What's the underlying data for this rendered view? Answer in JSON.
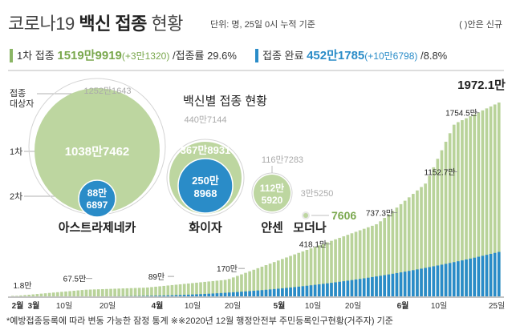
{
  "header": {
    "title_prefix": "코로나19",
    "title_bold": "백신 접종",
    "title_suffix": "현황",
    "unit_note": "단위: 명, 25일 0시 누적 기준",
    "new_note": "( )안은 신규"
  },
  "summary": {
    "first_label": "1차 접종",
    "first_value": "1519만9919",
    "first_new": "(+3만1320)",
    "first_rate_label": "/접종률",
    "first_rate": "29.6%",
    "complete_label": "접종 완료",
    "complete_value": "452만1785",
    "complete_new": "(+10만6798)",
    "complete_rate": "/8.8%"
  },
  "bubbles": {
    "section_title": "백신별 접종 현황",
    "legend_target": "접종 대상자",
    "legend_target_line1": "접종",
    "legend_target_line2": "대상자",
    "legend_first": "1차",
    "legend_second": "2차",
    "vaccines": [
      {
        "name": "아스트라제네카",
        "target": "1252만1643",
        "first": "1038만7462",
        "second_line1": "88만",
        "second_line2": "6897"
      },
      {
        "name": "화이자",
        "target": "440만7144",
        "first": "367만8931",
        "second_line1": "250만",
        "second_line2": "8968"
      },
      {
        "name": "얀센",
        "target": "116만7283",
        "first_line1": "112만",
        "first_line2": "5920",
        "second": ""
      },
      {
        "name": "모더나",
        "target": "3만5250",
        "first": "7606"
      }
    ]
  },
  "chart_data": {
    "type": "bar",
    "title": "",
    "series": [
      {
        "name": "1차",
        "color": "#b9d39a"
      },
      {
        "name": "2차",
        "color": "#2a8cc8"
      }
    ],
    "annotations": [
      {
        "date": "2월 26일",
        "label": "1.8만",
        "value": 1.8
      },
      {
        "date": "3월 16일",
        "label": "67.5만",
        "value": 67.5
      },
      {
        "date": "3월 31일",
        "label": "89만",
        "value": 89
      },
      {
        "date": "4월 20일",
        "label": "170만",
        "value": 170
      },
      {
        "date": "5월 6일",
        "label": "418.1만",
        "value": 418.1
      },
      {
        "date": "5월 27일",
        "label": "737.3만",
        "value": 737.3
      },
      {
        "date": "6월 8일",
        "label": "1152.7만",
        "value": 1152.7
      },
      {
        "date": "6월 15일",
        "label": "1754.5만",
        "value": 1754.5
      },
      {
        "date": "6월 25일",
        "label": "1972.1만",
        "value": 1972.1
      }
    ],
    "x_ticks": [
      "2월",
      "3월",
      "10일",
      "20일",
      "4월",
      "10일",
      "20일",
      "5월",
      "10일",
      "20일",
      "6월",
      "10일",
      "25일"
    ],
    "ylabel": "",
    "xlabel": ""
  },
  "footnote": "*예방접종등록에 따라 변동 가능한 잠정 통계 ※※2020년 12월 행정안전부 주민등록인구현황(거주자) 기준"
}
